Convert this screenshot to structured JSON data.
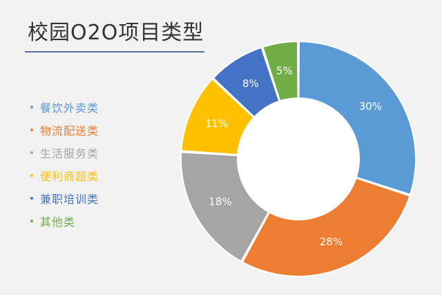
{
  "title": "校园O2O项目类型",
  "chart_data": {
    "type": "pie",
    "donut": true,
    "title": "校园O2O项目类型",
    "legend_position": "left",
    "categories": [
      "餐饮外卖类",
      "物流配送类",
      "生活服务类",
      "便利商超类",
      "兼职培训类",
      "其他类"
    ],
    "values": [
      30,
      28,
      18,
      11,
      8,
      5
    ],
    "labels": [
      "30%",
      "28%",
      "18%",
      "11%",
      "8%",
      "5%"
    ],
    "colors": [
      "#5b9bd5",
      "#ed7d31",
      "#a5a5a5",
      "#ffc000",
      "#4472c4",
      "#70ad47"
    ]
  }
}
